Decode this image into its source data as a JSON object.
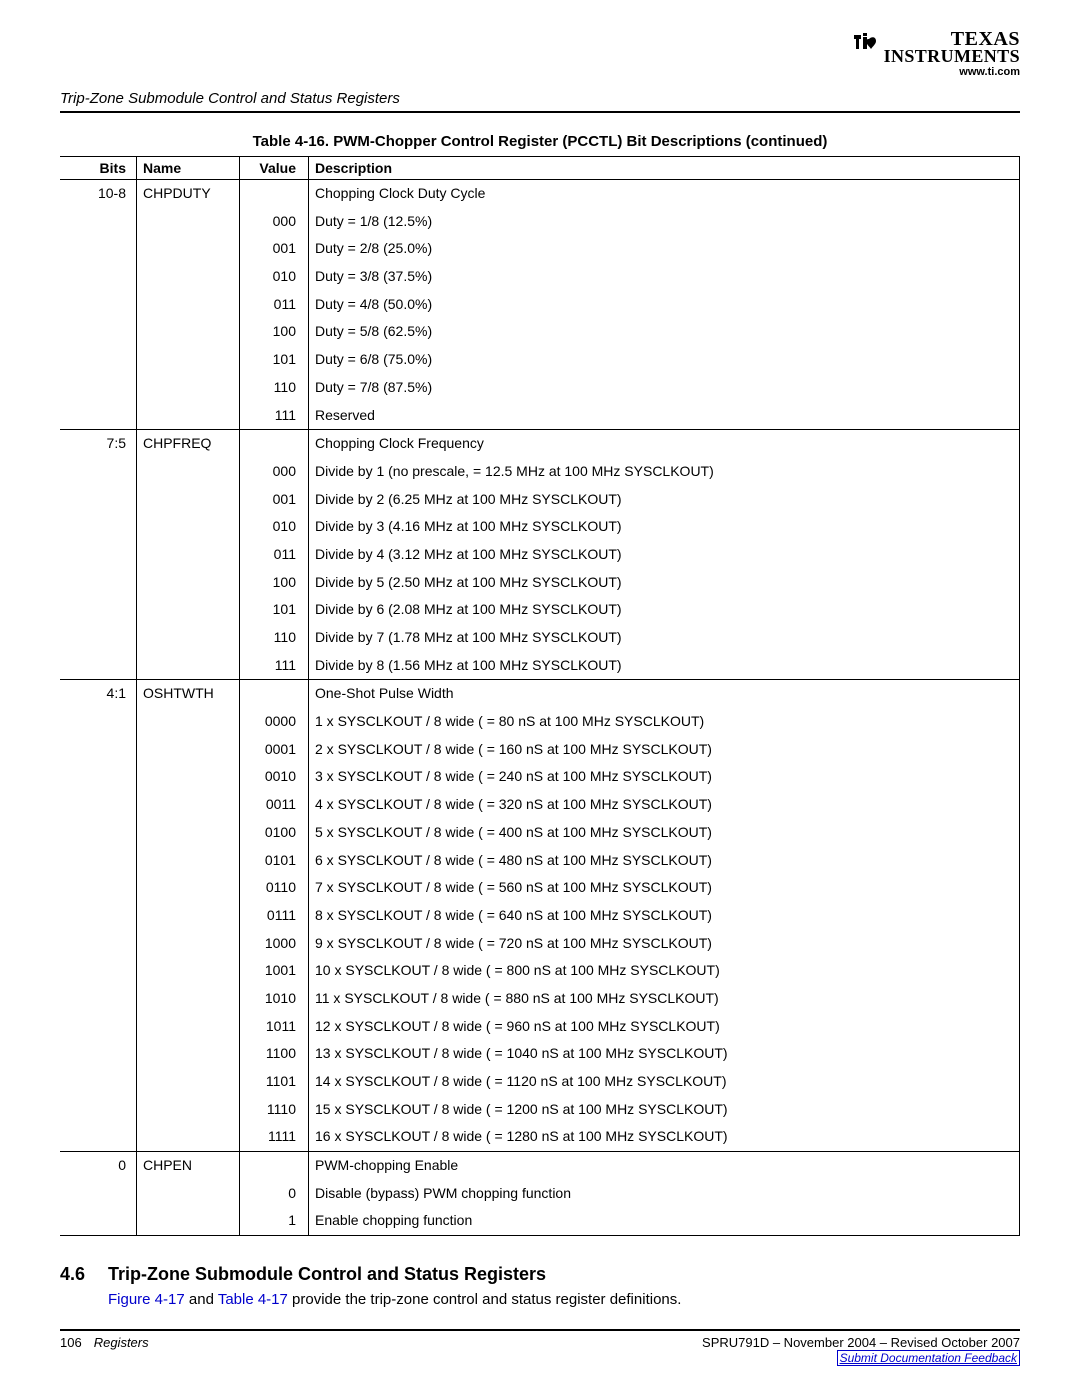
{
  "header": {
    "logo_top": "TEXAS",
    "logo_bottom": "INSTRUMENTS",
    "url": "www.ti.com"
  },
  "section_header": "Trip-Zone Submodule Control and Status Registers",
  "table_caption": "Table 4-16.  PWM-Chopper Control Register (PCCTL) Bit Descriptions   (continued)",
  "columns": {
    "bits": "Bits",
    "name": "Name",
    "value": "Value",
    "desc": "Description"
  },
  "groups": [
    {
      "bits": "10-8",
      "name": "CHPDUTY",
      "title": "Chopping Clock Duty Cycle",
      "rows": [
        {
          "v": "000",
          "d": "Duty = 1/8 (12.5%)"
        },
        {
          "v": "001",
          "d": "Duty = 2/8 (25.0%)"
        },
        {
          "v": "010",
          "d": "Duty = 3/8 (37.5%)"
        },
        {
          "v": "011",
          "d": "Duty = 4/8 (50.0%)"
        },
        {
          "v": "100",
          "d": "Duty = 5/8 (62.5%)"
        },
        {
          "v": "101",
          "d": "Duty = 6/8 (75.0%)"
        },
        {
          "v": "110",
          "d": "Duty = 7/8 (87.5%)"
        },
        {
          "v": "111",
          "d": "Reserved"
        }
      ]
    },
    {
      "bits": "7:5",
      "name": "CHPFREQ",
      "title": "Chopping Clock Frequency",
      "rows": [
        {
          "v": "000",
          "d": "Divide by 1 (no prescale, = 12.5 MHz at 100 MHz SYSCLKOUT)"
        },
        {
          "v": "001",
          "d": "Divide by 2 (6.25 MHz at 100 MHz SYSCLKOUT)"
        },
        {
          "v": "010",
          "d": "Divide by 3 (4.16 MHz at 100 MHz SYSCLKOUT)"
        },
        {
          "v": "011",
          "d": "Divide by 4 (3.12 MHz at 100 MHz SYSCLKOUT)"
        },
        {
          "v": "100",
          "d": "Divide by 5 (2.50 MHz at 100 MHz SYSCLKOUT)"
        },
        {
          "v": "101",
          "d": "Divide by 6 (2.08 MHz at 100 MHz SYSCLKOUT)"
        },
        {
          "v": "110",
          "d": "Divide by 7 (1.78 MHz at 100 MHz SYSCLKOUT)"
        },
        {
          "v": "111",
          "d": "Divide by 8 (1.56 MHz at 100 MHz SYSCLKOUT)"
        }
      ]
    },
    {
      "bits": "4:1",
      "name": "OSHTWTH",
      "title": "One-Shot Pulse Width",
      "rows": [
        {
          "v": "0000",
          "d": "1 x SYSCLKOUT / 8 wide ( = 80 nS at 100 MHz SYSCLKOUT)"
        },
        {
          "v": "0001",
          "d": "2 x SYSCLKOUT / 8 wide ( = 160 nS at 100 MHz SYSCLKOUT)"
        },
        {
          "v": "0010",
          "d": "3 x SYSCLKOUT / 8 wide ( = 240 nS at 100 MHz SYSCLKOUT)"
        },
        {
          "v": "0011",
          "d": "4 x SYSCLKOUT / 8 wide ( = 320 nS at 100 MHz SYSCLKOUT)"
        },
        {
          "v": "0100",
          "d": "5 x SYSCLKOUT / 8 wide ( = 400 nS at 100 MHz SYSCLKOUT)"
        },
        {
          "v": "0101",
          "d": "6 x SYSCLKOUT / 8 wide ( = 480 nS at 100 MHz SYSCLKOUT)"
        },
        {
          "v": "0110",
          "d": "7 x SYSCLKOUT / 8 wide ( = 560 nS at 100 MHz SYSCLKOUT)"
        },
        {
          "v": "0111",
          "d": "8 x SYSCLKOUT / 8 wide ( = 640 nS at 100 MHz SYSCLKOUT)"
        },
        {
          "v": "1000",
          "d": "9 x SYSCLKOUT / 8 wide ( = 720 nS at 100 MHz SYSCLKOUT)"
        },
        {
          "v": "1001",
          "d": "10 x SYSCLKOUT / 8 wide ( = 800 nS at 100 MHz SYSCLKOUT)"
        },
        {
          "v": "1010",
          "d": "11 x SYSCLKOUT / 8 wide ( = 880 nS at 100 MHz SYSCLKOUT)"
        },
        {
          "v": "1011",
          "d": "12 x SYSCLKOUT / 8 wide ( = 960 nS at 100 MHz SYSCLKOUT)"
        },
        {
          "v": "1100",
          "d": "13 x SYSCLKOUT / 8 wide ( = 1040 nS at 100 MHz SYSCLKOUT)"
        },
        {
          "v": "1101",
          "d": "14 x SYSCLKOUT / 8 wide ( = 1120 nS at 100 MHz SYSCLKOUT)"
        },
        {
          "v": "1110",
          "d": "15 x SYSCLKOUT / 8 wide ( = 1200 nS at 100 MHz SYSCLKOUT)"
        },
        {
          "v": "1111",
          "d": "16 x SYSCLKOUT / 8 wide ( = 1280 nS at 100 MHz SYSCLKOUT)"
        }
      ]
    },
    {
      "bits": "0",
      "name": "CHPEN",
      "title": "PWM-chopping Enable",
      "rows": [
        {
          "v": "0",
          "d": "Disable (bypass) PWM chopping function"
        },
        {
          "v": "1",
          "d": "Enable chopping function"
        }
      ]
    }
  ],
  "section": {
    "num": "4.6",
    "title": "Trip-Zone Submodule Control and Status Registers",
    "body_pre": "",
    "link1": "Figure 4-17",
    "mid": " and ",
    "link2": "Table 4-17",
    "body_post": " provide the trip-zone control and status register definitions."
  },
  "footer": {
    "page": "106",
    "chapter": "Registers",
    "doc": "SPRU791D – November 2004 – Revised October 2007",
    "feedback": "Submit Documentation Feedback"
  }
}
